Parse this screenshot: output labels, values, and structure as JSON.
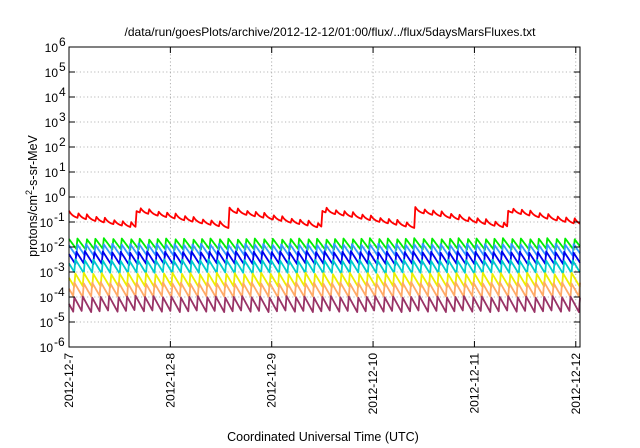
{
  "chart_data": {
    "type": "line",
    "title": "/data/run/goesPlots/archive/2012-12-12/01:00/flux/../flux/5daysMarsFluxes.txt",
    "xlabel": "Coordinated Universal Time (UTC)",
    "ylabel": "protons/cm²-s-sr-MeV",
    "y_scale": "log",
    "ylim": [
      1e-06,
      1000000.0
    ],
    "y_ticks": [
      {
        "value": 1e-06,
        "base": "10",
        "exp": "-6"
      },
      {
        "value": 1e-05,
        "base": "10",
        "exp": "-5"
      },
      {
        "value": 0.0001,
        "base": "10",
        "exp": "-4"
      },
      {
        "value": 0.001,
        "base": "10",
        "exp": "-3"
      },
      {
        "value": 0.01,
        "base": "10",
        "exp": "-2"
      },
      {
        "value": 0.1,
        "base": "10",
        "exp": "-1"
      },
      {
        "value": 1,
        "base": "10",
        "exp": "0"
      },
      {
        "value": 10,
        "base": "10",
        "exp": "1"
      },
      {
        "value": 100,
        "base": "10",
        "exp": "2"
      },
      {
        "value": 1000,
        "base": "10",
        "exp": "3"
      },
      {
        "value": 10000,
        "base": "10",
        "exp": "4"
      },
      {
        "value": 100000,
        "base": "10",
        "exp": "5"
      },
      {
        "value": 1000000,
        "base": "10",
        "exp": "6"
      }
    ],
    "x_ticks": [
      "2012-12-7",
      "2012-12-8",
      "2012-12-9",
      "2012-12-10",
      "2012-12-11",
      "2012-12-12"
    ],
    "xlim": [
      "2012-12-07T00:00",
      "2012-12-12T01:00"
    ],
    "grid": true,
    "legend": "none",
    "series": [
      {
        "color": "#ff0000",
        "base": 0.1,
        "amp": 3.5,
        "period_hours": 2.1,
        "shape": "slow"
      },
      {
        "color": "#00ee00",
        "base": 0.0075,
        "amp": 3.0,
        "period_hours": 2.1,
        "shape": "sawtooth"
      },
      {
        "color": "#3399ff",
        "base": 0.0042,
        "amp": 3.3,
        "period_hours": 2.1,
        "shape": "sawtooth"
      },
      {
        "color": "#0000ee",
        "base": 0.0019,
        "amp": 3.6,
        "period_hours": 2.1,
        "shape": "sawtooth"
      },
      {
        "color": "#00cccc",
        "base": 0.00085,
        "amp": 3.8,
        "period_hours": 2.1,
        "shape": "sawtooth"
      },
      {
        "color": "#eeee00",
        "base": 0.00024,
        "amp": 4.0,
        "period_hours": 2.1,
        "shape": "sawtooth"
      },
      {
        "color": "#ffaa66",
        "base": 9.5e-05,
        "amp": 4.2,
        "period_hours": 2.1,
        "shape": "sawtooth"
      },
      {
        "color": "#993366",
        "base": 2.5e-05,
        "amp": 4.5,
        "period_hours": 2.1,
        "shape": "sawtooth"
      }
    ]
  }
}
